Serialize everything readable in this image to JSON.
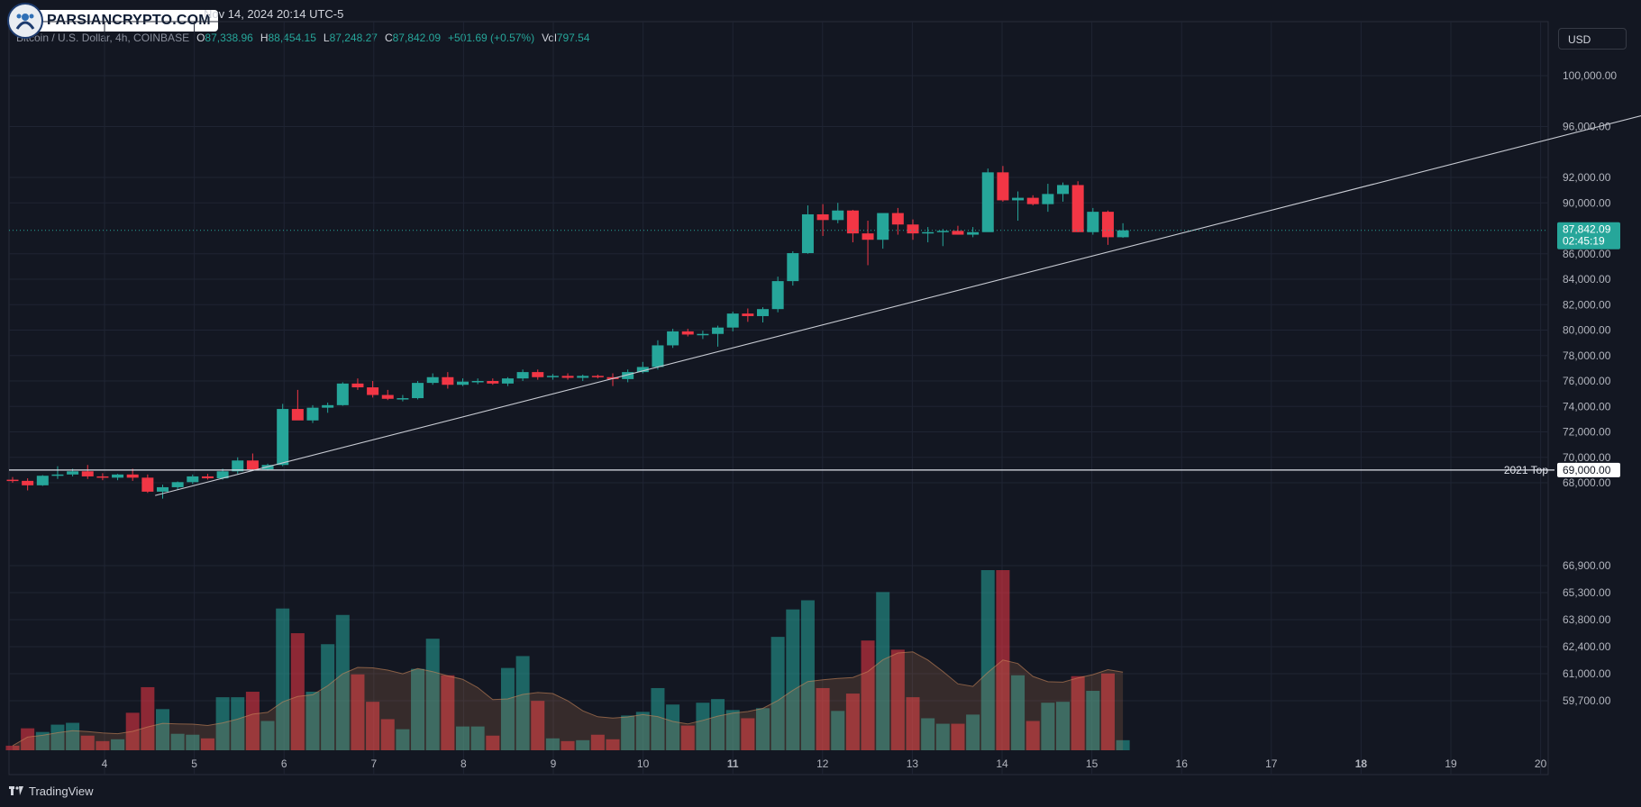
{
  "header": {
    "brand": "PARSIANCRYPTO.COM",
    "datetime": "Nov 14, 2024 20:14 UTC-5",
    "symbol": "Bitcoin / U.S. Dollar, 4h, COINBASE",
    "ohlc": {
      "o_label": "O",
      "o": "87,338.96",
      "h_label": "H",
      "h": "88,454.15",
      "l_label": "L",
      "l": "87,248.27",
      "c_label": "C",
      "c": "87,842.09",
      "change": "+501.69 (+0.57%)",
      "vol_label": "Vol",
      "vol": "797.54"
    },
    "currency": "USD"
  },
  "footer": {
    "brand": "TradingView"
  },
  "colors": {
    "up": "#26a69a",
    "down": "#f23645",
    "bg": "#131722",
    "grid": "#1f2433"
  },
  "chart_data": {
    "type": "candlestick",
    "price_axis": {
      "ticks": [
        {
          "v": 100000,
          "label": "100,000.00"
        },
        {
          "v": 96000,
          "label": "96,000.00"
        },
        {
          "v": 92000,
          "label": "92,000.00"
        },
        {
          "v": 90000,
          "label": "90,000.00"
        },
        {
          "v": 86000,
          "label": "86,000.00"
        },
        {
          "v": 84000,
          "label": "84,000.00"
        },
        {
          "v": 82000,
          "label": "82,000.00"
        },
        {
          "v": 80000,
          "label": "80,000.00"
        },
        {
          "v": 78000,
          "label": "78,000.00"
        },
        {
          "v": 76000,
          "label": "76,000.00"
        },
        {
          "v": 74000,
          "label": "74,000.00"
        },
        {
          "v": 72000,
          "label": "72,000.00"
        },
        {
          "v": 70000,
          "label": "70,000.00"
        },
        {
          "v": 68000,
          "label": "68,000.00"
        }
      ]
    },
    "volume_axis": {
      "labels": [
        "66,900.00",
        "65,300.00",
        "63,800.00",
        "62,400.00",
        "61,000.00",
        "59,700.00"
      ]
    },
    "x_ticks": [
      {
        "label": "4",
        "bold": false
      },
      {
        "label": "5",
        "bold": false
      },
      {
        "label": "6",
        "bold": false
      },
      {
        "label": "7",
        "bold": false
      },
      {
        "label": "8",
        "bold": false
      },
      {
        "label": "9",
        "bold": false
      },
      {
        "label": "10",
        "bold": false
      },
      {
        "label": "11",
        "bold": true
      },
      {
        "label": "12",
        "bold": false
      },
      {
        "label": "13",
        "bold": false
      },
      {
        "label": "14",
        "bold": false
      },
      {
        "label": "15",
        "bold": false
      },
      {
        "label": "16",
        "bold": false
      },
      {
        "label": "17",
        "bold": false
      },
      {
        "label": "18",
        "bold": true
      },
      {
        "label": "19",
        "bold": false
      },
      {
        "label": "20",
        "bold": false
      }
    ],
    "candles": [
      {
        "o": 68240,
        "h": 68450,
        "l": 68000,
        "c": 68150,
        "v": 5
      },
      {
        "o": 68150,
        "h": 68350,
        "l": 67400,
        "c": 67800,
        "v": 24
      },
      {
        "o": 67800,
        "h": 68600,
        "l": 67750,
        "c": 68550,
        "v": 20
      },
      {
        "o": 68550,
        "h": 69300,
        "l": 68300,
        "c": 68650,
        "v": 28
      },
      {
        "o": 68650,
        "h": 69100,
        "l": 68500,
        "c": 68900,
        "v": 30
      },
      {
        "o": 68900,
        "h": 69400,
        "l": 68300,
        "c": 68500,
        "v": 16
      },
      {
        "o": 68500,
        "h": 68750,
        "l": 68200,
        "c": 68400,
        "v": 10
      },
      {
        "o": 68400,
        "h": 68700,
        "l": 68200,
        "c": 68650,
        "v": 12
      },
      {
        "o": 68650,
        "h": 69100,
        "l": 68150,
        "c": 68400,
        "v": 41
      },
      {
        "o": 68400,
        "h": 68650,
        "l": 67200,
        "c": 67300,
        "v": 69
      },
      {
        "o": 67300,
        "h": 67850,
        "l": 66750,
        "c": 67650,
        "v": 45
      },
      {
        "o": 67650,
        "h": 68100,
        "l": 67450,
        "c": 68050,
        "v": 18
      },
      {
        "o": 68050,
        "h": 68650,
        "l": 67900,
        "c": 68500,
        "v": 17
      },
      {
        "o": 68500,
        "h": 68700,
        "l": 68250,
        "c": 68350,
        "v": 13
      },
      {
        "o": 68350,
        "h": 69100,
        "l": 68250,
        "c": 68900,
        "v": 58
      },
      {
        "o": 68900,
        "h": 70000,
        "l": 68700,
        "c": 69750,
        "v": 58
      },
      {
        "o": 69750,
        "h": 70300,
        "l": 69000,
        "c": 69050,
        "v": 64
      },
      {
        "o": 69050,
        "h": 69500,
        "l": 68950,
        "c": 69400,
        "v": 32
      },
      {
        "o": 69400,
        "h": 74200,
        "l": 69300,
        "c": 73800,
        "v": 155
      },
      {
        "o": 73800,
        "h": 75300,
        "l": 73000,
        "c": 72900,
        "v": 128
      },
      {
        "o": 72900,
        "h": 74100,
        "l": 72700,
        "c": 73900,
        "v": 64
      },
      {
        "o": 73900,
        "h": 74300,
        "l": 73500,
        "c": 74100,
        "v": 116
      },
      {
        "o": 74100,
        "h": 75900,
        "l": 74050,
        "c": 75800,
        "v": 148
      },
      {
        "o": 75800,
        "h": 76200,
        "l": 75300,
        "c": 75500,
        "v": 83
      },
      {
        "o": 75500,
        "h": 76000,
        "l": 74700,
        "c": 74900,
        "v": 53
      },
      {
        "o": 74900,
        "h": 75300,
        "l": 74500,
        "c": 74600,
        "v": 34
      },
      {
        "o": 74600,
        "h": 74900,
        "l": 74400,
        "c": 74650,
        "v": 23
      },
      {
        "o": 74650,
        "h": 76000,
        "l": 74550,
        "c": 75850,
        "v": 89
      },
      {
        "o": 75850,
        "h": 76600,
        "l": 75700,
        "c": 76300,
        "v": 122
      },
      {
        "o": 76300,
        "h": 76700,
        "l": 75400,
        "c": 75700,
        "v": 82
      },
      {
        "o": 75700,
        "h": 76200,
        "l": 75600,
        "c": 75950,
        "v": 26
      },
      {
        "o": 75950,
        "h": 76200,
        "l": 75750,
        "c": 76000,
        "v": 26
      },
      {
        "o": 76000,
        "h": 76200,
        "l": 75700,
        "c": 75800,
        "v": 16
      },
      {
        "o": 75800,
        "h": 76300,
        "l": 75600,
        "c": 76200,
        "v": 90
      },
      {
        "o": 76200,
        "h": 76900,
        "l": 76000,
        "c": 76700,
        "v": 103
      },
      {
        "o": 76700,
        "h": 76900,
        "l": 76100,
        "c": 76300,
        "v": 54
      },
      {
        "o": 76300,
        "h": 76550,
        "l": 76100,
        "c": 76400,
        "v": 13
      },
      {
        "o": 76400,
        "h": 76600,
        "l": 76100,
        "c": 76250,
        "v": 10
      },
      {
        "o": 76250,
        "h": 76500,
        "l": 76000,
        "c": 76400,
        "v": 11
      },
      {
        "o": 76400,
        "h": 76500,
        "l": 76200,
        "c": 76300,
        "v": 17
      },
      {
        "o": 76300,
        "h": 76600,
        "l": 75600,
        "c": 76150,
        "v": 12
      },
      {
        "o": 76150,
        "h": 76900,
        "l": 75900,
        "c": 76700,
        "v": 38
      },
      {
        "o": 76700,
        "h": 77500,
        "l": 76600,
        "c": 77100,
        "v": 42
      },
      {
        "o": 77100,
        "h": 79200,
        "l": 76900,
        "c": 78800,
        "v": 68
      },
      {
        "o": 78800,
        "h": 80100,
        "l": 78600,
        "c": 79900,
        "v": 50
      },
      {
        "o": 79900,
        "h": 80100,
        "l": 79500,
        "c": 79650,
        "v": 27
      },
      {
        "o": 79650,
        "h": 79950,
        "l": 79300,
        "c": 79700,
        "v": 52
      },
      {
        "o": 79700,
        "h": 80350,
        "l": 78700,
        "c": 80200,
        "v": 56
      },
      {
        "o": 80200,
        "h": 81450,
        "l": 79900,
        "c": 81300,
        "v": 44
      },
      {
        "o": 81300,
        "h": 81700,
        "l": 80650,
        "c": 81100,
        "v": 35
      },
      {
        "o": 81100,
        "h": 81800,
        "l": 80600,
        "c": 81650,
        "v": 46
      },
      {
        "o": 81650,
        "h": 84200,
        "l": 81400,
        "c": 83850,
        "v": 124
      },
      {
        "o": 83850,
        "h": 86200,
        "l": 83500,
        "c": 86050,
        "v": 154
      },
      {
        "o": 86050,
        "h": 89800,
        "l": 86000,
        "c": 89100,
        "v": 164
      },
      {
        "o": 89100,
        "h": 89900,
        "l": 87400,
        "c": 88650,
        "v": 68
      },
      {
        "o": 88650,
        "h": 90000,
        "l": 88400,
        "c": 89400,
        "v": 43
      },
      {
        "o": 89400,
        "h": 89450,
        "l": 86900,
        "c": 87600,
        "v": 62
      },
      {
        "o": 87600,
        "h": 88600,
        "l": 85100,
        "c": 87100,
        "v": 120
      },
      {
        "o": 87100,
        "h": 89000,
        "l": 86400,
        "c": 89200,
        "v": 173
      },
      {
        "o": 89200,
        "h": 89600,
        "l": 87500,
        "c": 88300,
        "v": 110
      },
      {
        "o": 88300,
        "h": 88700,
        "l": 87100,
        "c": 87600,
        "v": 58
      },
      {
        "o": 87600,
        "h": 88100,
        "l": 86900,
        "c": 87700,
        "v": 35
      },
      {
        "o": 87700,
        "h": 87950,
        "l": 86600,
        "c": 87800,
        "v": 29
      },
      {
        "o": 87800,
        "h": 88200,
        "l": 87500,
        "c": 87500,
        "v": 29
      },
      {
        "o": 87500,
        "h": 88100,
        "l": 87300,
        "c": 87700,
        "v": 39
      },
      {
        "o": 87700,
        "h": 92700,
        "l": 87800,
        "c": 92400,
        "v": 197
      },
      {
        "o": 92400,
        "h": 92900,
        "l": 90100,
        "c": 90200,
        "v": 197
      },
      {
        "o": 90200,
        "h": 90900,
        "l": 88600,
        "c": 90400,
        "v": 82
      },
      {
        "o": 90400,
        "h": 90600,
        "l": 89800,
        "c": 89900,
        "v": 32
      },
      {
        "o": 89900,
        "h": 91500,
        "l": 89300,
        "c": 90700,
        "v": 52
      },
      {
        "o": 90700,
        "h": 91600,
        "l": 90100,
        "c": 91400,
        "v": 53
      },
      {
        "o": 91400,
        "h": 91700,
        "l": 87700,
        "c": 87700,
        "v": 81
      },
      {
        "o": 87700,
        "h": 89600,
        "l": 87500,
        "c": 89300,
        "v": 65
      },
      {
        "o": 89300,
        "h": 89400,
        "l": 86700,
        "c": 87300,
        "v": 84
      },
      {
        "o": 87300,
        "h": 88400,
        "l": 87250,
        "c": 87842,
        "v": 11
      }
    ],
    "trendline": {
      "from": {
        "index": 9.5,
        "price": 67000
      },
      "to": {
        "index": 119,
        "price": 100000
      }
    },
    "horizontal_line": {
      "price": 69000,
      "label": "2021 Top",
      "price_label": "69,000.00"
    },
    "current_price": {
      "price": 87842.09,
      "label": "87,842.09",
      "countdown": "02:45:19"
    }
  }
}
